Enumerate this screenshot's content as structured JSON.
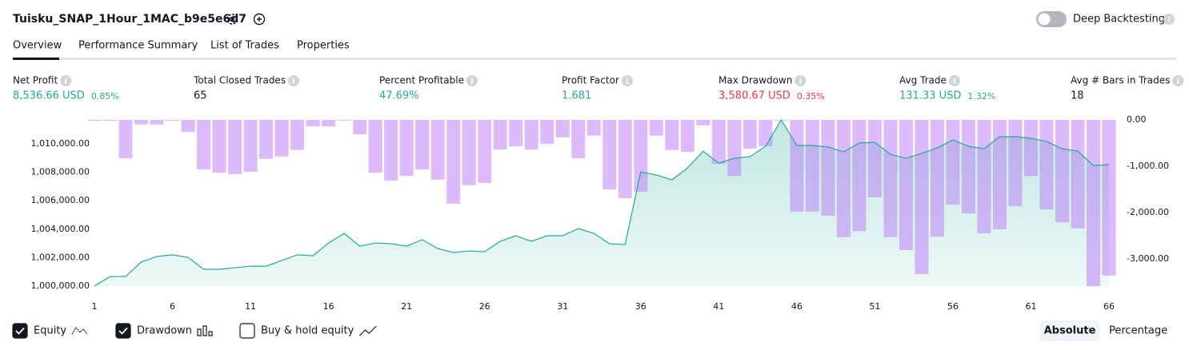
{
  "header": {
    "title": "Tuisku_SNAP_1Hour_1MAC_b9e5e6d7",
    "toggle_label": "Deep Backtesting"
  },
  "tabs": [
    "Overview",
    "Performance Summary",
    "List of Trades",
    "Properties"
  ],
  "metrics": [
    {
      "label": "Net Profit",
      "value": "8,536.66 USD",
      "percent": "0.85%",
      "color": "#22ab94"
    },
    {
      "label": "Total Closed Trades",
      "value": "65",
      "color": "#131722"
    },
    {
      "label": "Percent Profitable",
      "value": "47.69%",
      "color": "#22ab94"
    },
    {
      "label": "Profit Factor",
      "value": "1.681",
      "color": "#22ab94"
    },
    {
      "label": "Max Drawdown",
      "value": "3,580.67 USD",
      "percent": "0.35%",
      "color": "#f23645"
    },
    {
      "label": "Avg Trade",
      "value": "131.33 USD",
      "percent": "1.32%",
      "color": "#22ab94"
    },
    {
      "label": "Avg # Bars in Trades",
      "value": "18",
      "color": "#131722"
    }
  ],
  "footer": {
    "extra_toggle": "Buy & hold equity",
    "modes": [
      "Absolute",
      "Percentage"
    ]
  },
  "chart_data": {
    "type": "combo",
    "x": [
      1,
      2,
      3,
      4,
      5,
      6,
      7,
      8,
      9,
      10,
      11,
      12,
      13,
      14,
      15,
      16,
      17,
      18,
      19,
      20,
      21,
      22,
      23,
      24,
      25,
      26,
      27,
      28,
      29,
      30,
      31,
      32,
      33,
      34,
      35,
      36,
      37,
      38,
      39,
      40,
      41,
      42,
      43,
      44,
      45,
      46,
      47,
      48,
      49,
      50,
      51,
      52,
      53,
      54,
      55,
      56,
      57,
      58,
      59,
      60,
      61,
      62,
      63,
      64,
      65,
      66
    ],
    "xlim": [
      1,
      66
    ],
    "xticks": [
      1,
      6,
      11,
      16,
      21,
      26,
      31,
      36,
      41,
      46,
      51,
      56,
      61,
      66
    ],
    "ylim": [
      1000000,
      1011690
    ],
    "yticks": [
      {
        "value": 1000000,
        "label": "1,000,000.00"
      },
      {
        "value": 1002000,
        "label": "1,002,000.00"
      },
      {
        "value": 1004000,
        "label": "1,004,000.00"
      },
      {
        "value": 1006000,
        "label": "1,006,000.00"
      },
      {
        "value": 1008000,
        "label": "1,008,000.00"
      },
      {
        "value": 1010000,
        "label": "1,010,000.00"
      }
    ],
    "y2lim": [
      -3586,
      0
    ],
    "y2ticks": [
      {
        "value": 0,
        "label": "0.00"
      },
      {
        "value": -1000,
        "label": "-1,000.00"
      },
      {
        "value": -2000,
        "label": "-2,000.00"
      },
      {
        "value": -3000,
        "label": "-3,000.00"
      }
    ],
    "series": [
      {
        "name": "Equity",
        "type": "area",
        "axis": "y",
        "color": "#22ab94",
        "values": [
          1000000,
          1000670,
          1000670,
          1001690,
          1002080,
          1002200,
          1002020,
          1001180,
          1001180,
          1001290,
          1001400,
          1001400,
          1001800,
          1002200,
          1002130,
          1003030,
          1003700,
          1002810,
          1003030,
          1002980,
          1002810,
          1003260,
          1002640,
          1002360,
          1002470,
          1002420,
          1003150,
          1003540,
          1003150,
          1003540,
          1003540,
          1004040,
          1003710,
          1002980,
          1002920,
          1008030,
          1007810,
          1007470,
          1008310,
          1009490,
          1008650,
          1008990,
          1009100,
          1009830,
          1011690,
          1009890,
          1009890,
          1009780,
          1009440,
          1010060,
          1010110,
          1009270,
          1008990,
          1009330,
          1009720,
          1010280,
          1009830,
          1009660,
          1010510,
          1010510,
          1010390,
          1010170,
          1009660,
          1009490,
          1008480,
          1008537
        ]
      },
      {
        "name": "Drawdown",
        "type": "bar",
        "axis": "y2",
        "color": "rgba(186,120,250,0.5)",
        "values": [
          -20,
          -20,
          -830,
          -100,
          -100,
          -20,
          -260,
          -1070,
          -1140,
          -1170,
          -1120,
          -840,
          -790,
          -650,
          -140,
          -140,
          0,
          -310,
          -1140,
          -1310,
          -1210,
          -1070,
          -1290,
          -1810,
          -1410,
          -1360,
          -640,
          -570,
          -640,
          -520,
          -380,
          -830,
          -340,
          -1500,
          -1690,
          -1550,
          -340,
          -650,
          -690,
          -120,
          -950,
          -1210,
          -620,
          -570,
          0,
          -1980,
          -1980,
          -2070,
          -2530,
          -2400,
          -1670,
          -2530,
          -2810,
          -3330,
          -2520,
          -1830,
          -2020,
          -2450,
          -2360,
          -1860,
          -1210,
          -1930,
          -2210,
          -2340,
          -3590,
          -3360
        ]
      }
    ]
  }
}
